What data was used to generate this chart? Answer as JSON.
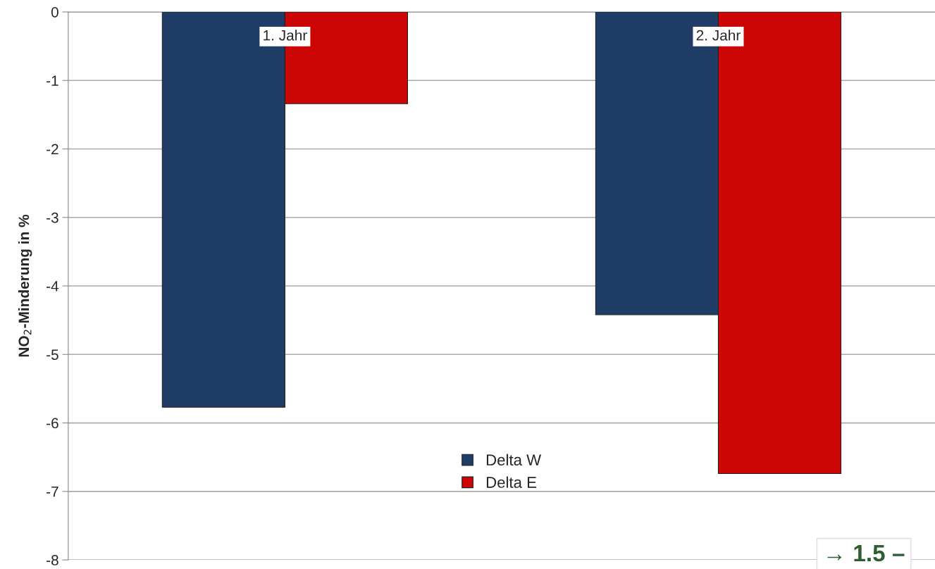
{
  "chart_data": {
    "type": "bar",
    "ylabel": "NO$_{2}$-Minderung in %",
    "categories": [
      "1. Jahr",
      "2. Jahr"
    ],
    "series": [
      {
        "name": "Delta W",
        "color": "#1f3d66",
        "values": [
          -5.77,
          -4.42
        ]
      },
      {
        "name": "Delta E",
        "color": "#cc0505",
        "values": [
          -1.34,
          -6.74
        ]
      }
    ],
    "ylim": [
      -8,
      0
    ],
    "yticks": [
      0,
      -1,
      -2,
      -3,
      -4,
      -5,
      -6,
      -7,
      -8
    ],
    "grid": "y",
    "legend": "bottom",
    "annotations": [
      "→ 1.5 –"
    ]
  }
}
